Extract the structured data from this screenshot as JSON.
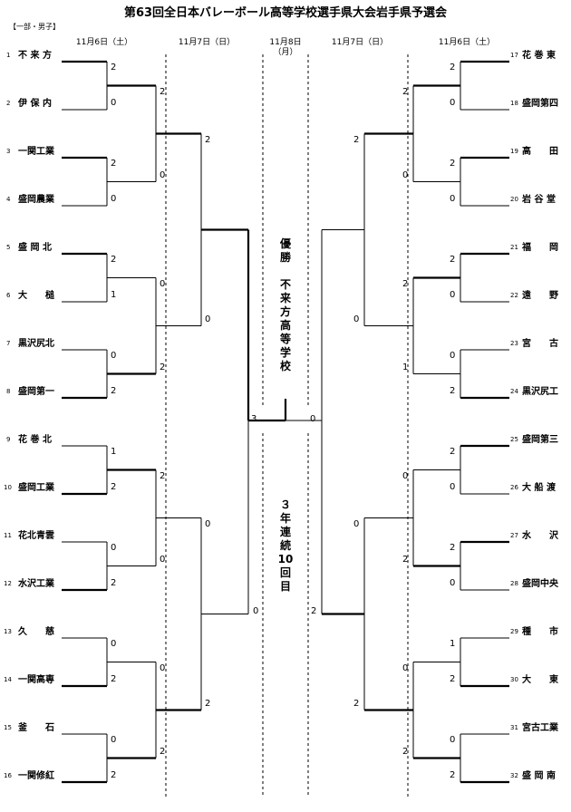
{
  "title": "第63回全日本バレーボール高等学校選手県大会岩手県予選会",
  "division": "【一部・男子】",
  "dates": {
    "left_r1": "11月6日（土）",
    "left_r2": "11月7日（日）",
    "final_line1": "11月8日",
    "final_line2": "（月）",
    "right_r2": "11月7日（日）",
    "right_r1": "11月6日（土）"
  },
  "champion_text": [
    "優",
    "勝",
    "",
    "不",
    "来",
    "方",
    "高",
    "等",
    "学",
    "校"
  ],
  "consecutive_text": [
    "３",
    "年",
    "連",
    "続",
    "10",
    "回",
    "目"
  ],
  "left_teams": [
    {
      "seed": "1",
      "name": "不 来 方"
    },
    {
      "seed": "2",
      "name": "伊 保 内"
    },
    {
      "seed": "3",
      "name": "一関工業"
    },
    {
      "seed": "4",
      "name": "盛岡農業"
    },
    {
      "seed": "5",
      "name": "盛 岡 北"
    },
    {
      "seed": "6",
      "name": "大　　槌"
    },
    {
      "seed": "7",
      "name": "黒沢尻北"
    },
    {
      "seed": "8",
      "name": "盛岡第一"
    },
    {
      "seed": "9",
      "name": "花 巻 北"
    },
    {
      "seed": "10",
      "name": "盛岡工業"
    },
    {
      "seed": "11",
      "name": "花北青雲"
    },
    {
      "seed": "12",
      "name": "水沢工業"
    },
    {
      "seed": "13",
      "name": "久　　慈"
    },
    {
      "seed": "14",
      "name": "一関高専"
    },
    {
      "seed": "15",
      "name": "釜　　石"
    },
    {
      "seed": "16",
      "name": "一関修紅"
    }
  ],
  "right_teams": [
    {
      "seed": "17",
      "name": "花 巻 東"
    },
    {
      "seed": "18",
      "name": "盛岡第四"
    },
    {
      "seed": "19",
      "name": "高　　田"
    },
    {
      "seed": "20",
      "name": "岩 谷 堂"
    },
    {
      "seed": "21",
      "name": "福　　岡"
    },
    {
      "seed": "22",
      "name": "遠　　野"
    },
    {
      "seed": "23",
      "name": "宮　　古"
    },
    {
      "seed": "24",
      "name": "黒沢尻工"
    },
    {
      "seed": "25",
      "name": "盛岡第三"
    },
    {
      "seed": "26",
      "name": "大 船 渡"
    },
    {
      "seed": "27",
      "name": "水　　沢"
    },
    {
      "seed": "28",
      "name": "盛岡中央"
    },
    {
      "seed": "29",
      "name": "種　　市"
    },
    {
      "seed": "30",
      "name": "大　　東"
    },
    {
      "seed": "31",
      "name": "宮古工業"
    },
    {
      "seed": "32",
      "name": "盛 岡 南"
    }
  ],
  "left_scores": {
    "r1": [
      "2",
      "0",
      "2",
      "0",
      "2",
      "1",
      "0",
      "2",
      "1",
      "2",
      "0",
      "2",
      "0",
      "2",
      "0",
      "2"
    ],
    "r2": [
      "2",
      "0",
      "0",
      "2",
      "2",
      "0",
      "0",
      "2"
    ],
    "r3": [
      "2",
      "0",
      "0",
      "2"
    ],
    "sf": [
      "3",
      "0"
    ]
  },
  "right_scores": {
    "r1": [
      "2",
      "0",
      "2",
      "0",
      "2",
      "0",
      "0",
      "2",
      "2",
      "0",
      "2",
      "0",
      "1",
      "2",
      "0",
      "2"
    ],
    "r2": [
      "2",
      "0",
      "2",
      "1",
      "0",
      "2",
      "0",
      "2"
    ],
    "r3": [
      "2",
      "0",
      "0",
      "2"
    ],
    "final": "0",
    "sf": "2"
  }
}
